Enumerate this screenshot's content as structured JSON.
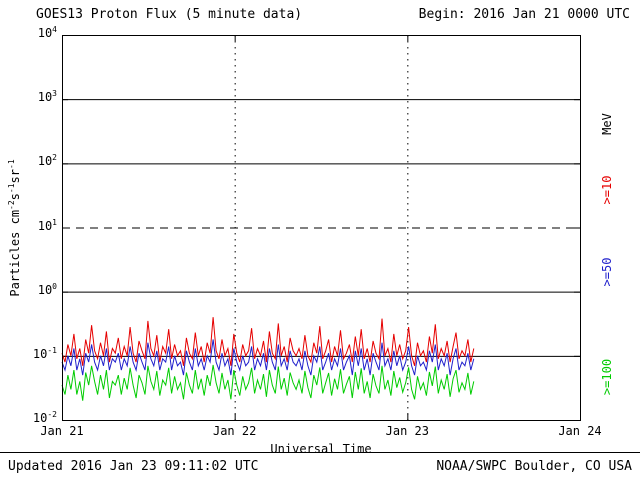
{
  "header": {
    "title": "GOES13 Proton Flux (5 minute data)",
    "begin_label": "Begin: 2016 Jan 21 0000 UTC"
  },
  "footer": {
    "updated": "Updated 2016 Jan 23 09:11:02 UTC",
    "credit": "NOAA/SWPC Boulder, CO USA"
  },
  "chart_data": {
    "type": "line",
    "title": "GOES13 Proton Flux (5 minute data)",
    "xlabel": "Universal Time",
    "ylabel_text": "Particles cm-2 s-1 sr-1",
    "ylabel_parts": [
      [
        "Particles cm",
        "-2"
      ],
      [
        "s",
        "-1"
      ],
      [
        "sr",
        "-1"
      ]
    ],
    "y_scale": "log",
    "ylim": [
      0.01,
      10000
    ],
    "grid": true,
    "y_ticks": [
      {
        "value": 10000,
        "base": "10",
        "exp": "4"
      },
      {
        "value": 1000,
        "base": "10",
        "exp": "3"
      },
      {
        "value": 100,
        "base": "10",
        "exp": "2"
      },
      {
        "value": 10,
        "base": "10",
        "exp": "1"
      },
      {
        "value": 1,
        "base": "10",
        "exp": "0"
      },
      {
        "value": 0.1,
        "base": "10",
        "exp": "-1"
      },
      {
        "value": 0.01,
        "base": "10",
        "exp": "-2"
      }
    ],
    "x_days": [
      "Jan 21",
      "Jan 22",
      "Jan 23",
      "Jan 24"
    ],
    "x_range_days": [
      0,
      3
    ],
    "data_start_day": 0,
    "data_end_day": 2.385,
    "hlines": [
      {
        "value": 1000,
        "style": "solid"
      },
      {
        "value": 100,
        "style": "solid"
      },
      {
        "value": 10,
        "style": "dashed"
      },
      {
        "value": 1,
        "style": "solid"
      },
      {
        "value": 0.1,
        "style": "solid"
      }
    ],
    "vlines_days": [
      1,
      2
    ],
    "unit_label": "MeV",
    "series": [
      {
        "name": ">=10 MeV",
        "label": ">=10",
        "color": "#e60000",
        "values": [
          0.11,
          0.08,
          0.15,
          0.1,
          0.22,
          0.09,
          0.13,
          0.07,
          0.18,
          0.11,
          0.3,
          0.12,
          0.09,
          0.16,
          0.1,
          0.24,
          0.08,
          0.13,
          0.11,
          0.19,
          0.09,
          0.14,
          0.1,
          0.28,
          0.11,
          0.08,
          0.17,
          0.12,
          0.09,
          0.35,
          0.13,
          0.1,
          0.21,
          0.08,
          0.14,
          0.11,
          0.26,
          0.09,
          0.15,
          0.1,
          0.12,
          0.07,
          0.19,
          0.11,
          0.09,
          0.23,
          0.1,
          0.14,
          0.08,
          0.16,
          0.11,
          0.4,
          0.12,
          0.09,
          0.18,
          0.1,
          0.13,
          0.07,
          0.22,
          0.11,
          0.08,
          0.15,
          0.1,
          0.12,
          0.27,
          0.09,
          0.13,
          0.1,
          0.17,
          0.08,
          0.24,
          0.11,
          0.09,
          0.32,
          0.1,
          0.14,
          0.08,
          0.19,
          0.12,
          0.1,
          0.13,
          0.09,
          0.21,
          0.1,
          0.08,
          0.16,
          0.11,
          0.29,
          0.09,
          0.12,
          0.18,
          0.08,
          0.14,
          0.1,
          0.25,
          0.09,
          0.11,
          0.15,
          0.08,
          0.2,
          0.1,
          0.26,
          0.09,
          0.13,
          0.08,
          0.17,
          0.11,
          0.09,
          0.38,
          0.1,
          0.13,
          0.08,
          0.22,
          0.1,
          0.15,
          0.09,
          0.12,
          0.28,
          0.1,
          0.07,
          0.16,
          0.1,
          0.12,
          0.08,
          0.2,
          0.11,
          0.31,
          0.09,
          0.13,
          0.1,
          0.17,
          0.08,
          0.14,
          0.23,
          0.09,
          0.12,
          0.1,
          0.18,
          0.08,
          0.13
        ]
      },
      {
        "name": ">=50 MeV",
        "label": ">=50",
        "color": "#2020cc",
        "values": [
          0.08,
          0.06,
          0.1,
          0.07,
          0.13,
          0.06,
          0.09,
          0.05,
          0.11,
          0.08,
          0.15,
          0.08,
          0.06,
          0.1,
          0.07,
          0.13,
          0.06,
          0.09,
          0.08,
          0.11,
          0.06,
          0.09,
          0.07,
          0.14,
          0.08,
          0.06,
          0.11,
          0.08,
          0.06,
          0.16,
          0.09,
          0.07,
          0.12,
          0.06,
          0.09,
          0.08,
          0.14,
          0.06,
          0.1,
          0.07,
          0.08,
          0.05,
          0.12,
          0.08,
          0.06,
          0.13,
          0.07,
          0.09,
          0.06,
          0.1,
          0.08,
          0.18,
          0.08,
          0.06,
          0.11,
          0.07,
          0.09,
          0.05,
          0.13,
          0.08,
          0.06,
          0.1,
          0.07,
          0.08,
          0.14,
          0.06,
          0.09,
          0.07,
          0.11,
          0.06,
          0.13,
          0.08,
          0.06,
          0.15,
          0.07,
          0.09,
          0.06,
          0.12,
          0.08,
          0.07,
          0.09,
          0.06,
          0.12,
          0.07,
          0.05,
          0.1,
          0.08,
          0.14,
          0.06,
          0.08,
          0.11,
          0.06,
          0.09,
          0.07,
          0.13,
          0.06,
          0.08,
          0.1,
          0.05,
          0.12,
          0.07,
          0.13,
          0.06,
          0.09,
          0.05,
          0.11,
          0.08,
          0.06,
          0.16,
          0.07,
          0.09,
          0.06,
          0.12,
          0.07,
          0.1,
          0.06,
          0.08,
          0.14,
          0.07,
          0.05,
          0.1,
          0.07,
          0.08,
          0.06,
          0.12,
          0.08,
          0.15,
          0.06,
          0.09,
          0.07,
          0.11,
          0.05,
          0.09,
          0.13,
          0.06,
          0.08,
          0.07,
          0.11,
          0.06,
          0.09
        ]
      },
      {
        "name": ">=100 MeV",
        "label": ">=100",
        "color": "#00cc00",
        "values": [
          0.035,
          0.025,
          0.05,
          0.03,
          0.06,
          0.025,
          0.04,
          0.02,
          0.055,
          0.035,
          0.07,
          0.04,
          0.025,
          0.05,
          0.03,
          0.06,
          0.022,
          0.04,
          0.035,
          0.05,
          0.025,
          0.045,
          0.03,
          0.065,
          0.035,
          0.022,
          0.05,
          0.038,
          0.025,
          0.07,
          0.04,
          0.03,
          0.058,
          0.024,
          0.042,
          0.035,
          0.065,
          0.026,
          0.048,
          0.03,
          0.038,
          0.021,
          0.055,
          0.035,
          0.026,
          0.06,
          0.03,
          0.044,
          0.024,
          0.05,
          0.034,
          0.072,
          0.038,
          0.026,
          0.054,
          0.03,
          0.042,
          0.021,
          0.06,
          0.035,
          0.024,
          0.048,
          0.03,
          0.038,
          0.065,
          0.026,
          0.042,
          0.03,
          0.052,
          0.023,
          0.06,
          0.035,
          0.026,
          0.068,
          0.03,
          0.045,
          0.024,
          0.055,
          0.038,
          0.03,
          0.042,
          0.026,
          0.058,
          0.032,
          0.022,
          0.05,
          0.035,
          0.066,
          0.026,
          0.038,
          0.054,
          0.024,
          0.044,
          0.03,
          0.062,
          0.026,
          0.036,
          0.048,
          0.022,
          0.056,
          0.03,
          0.064,
          0.026,
          0.04,
          0.022,
          0.052,
          0.034,
          0.026,
          0.07,
          0.03,
          0.042,
          0.024,
          0.058,
          0.032,
          0.046,
          0.027,
          0.038,
          0.066,
          0.03,
          0.021,
          0.048,
          0.03,
          0.038,
          0.024,
          0.056,
          0.034,
          0.068,
          0.026,
          0.042,
          0.03,
          0.052,
          0.023,
          0.044,
          0.06,
          0.027,
          0.038,
          0.03,
          0.054,
          0.025,
          0.04
        ]
      }
    ]
  }
}
